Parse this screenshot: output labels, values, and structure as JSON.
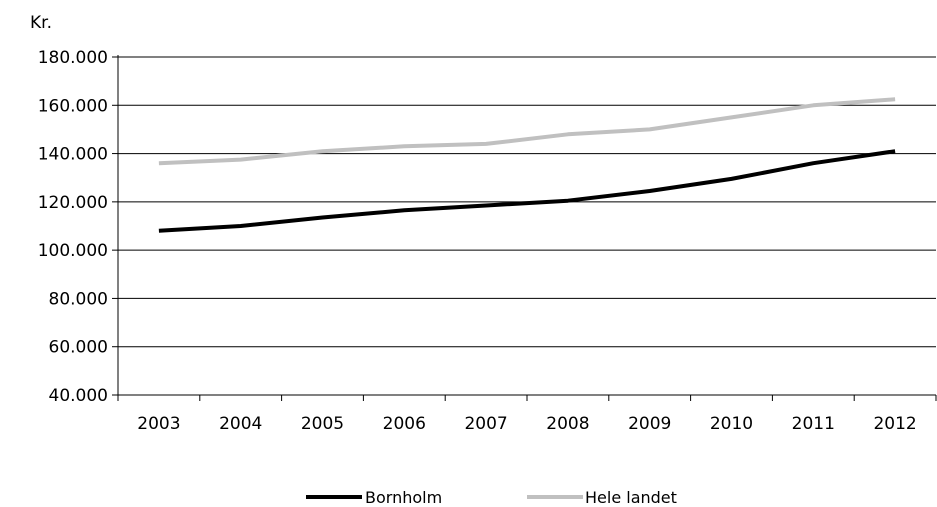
{
  "chart_data": {
    "type": "line",
    "title": "",
    "unit_label": "Kr.",
    "xlabel": "",
    "ylabel": "",
    "categories": [
      "2003",
      "2004",
      "2005",
      "2006",
      "2007",
      "2008",
      "2009",
      "2010",
      "2011",
      "2012"
    ],
    "ylim": [
      40000,
      180000
    ],
    "ytick_labels": [
      "40.000",
      "60.000",
      "80.000",
      "100.000",
      "120.000",
      "140.000",
      "160.000",
      "180.000"
    ],
    "grid": true,
    "legend_position": "bottom",
    "series": [
      {
        "name": "Bornholm",
        "color": "#000000",
        "values": [
          108000,
          110000,
          113500,
          116500,
          118500,
          120500,
          124500,
          129500,
          136000,
          141000
        ]
      },
      {
        "name": "Hele landet",
        "color": "#c0c0c0",
        "values": [
          136000,
          137500,
          141000,
          143000,
          144000,
          148000,
          150000,
          155000,
          160000,
          162500
        ]
      }
    ]
  }
}
